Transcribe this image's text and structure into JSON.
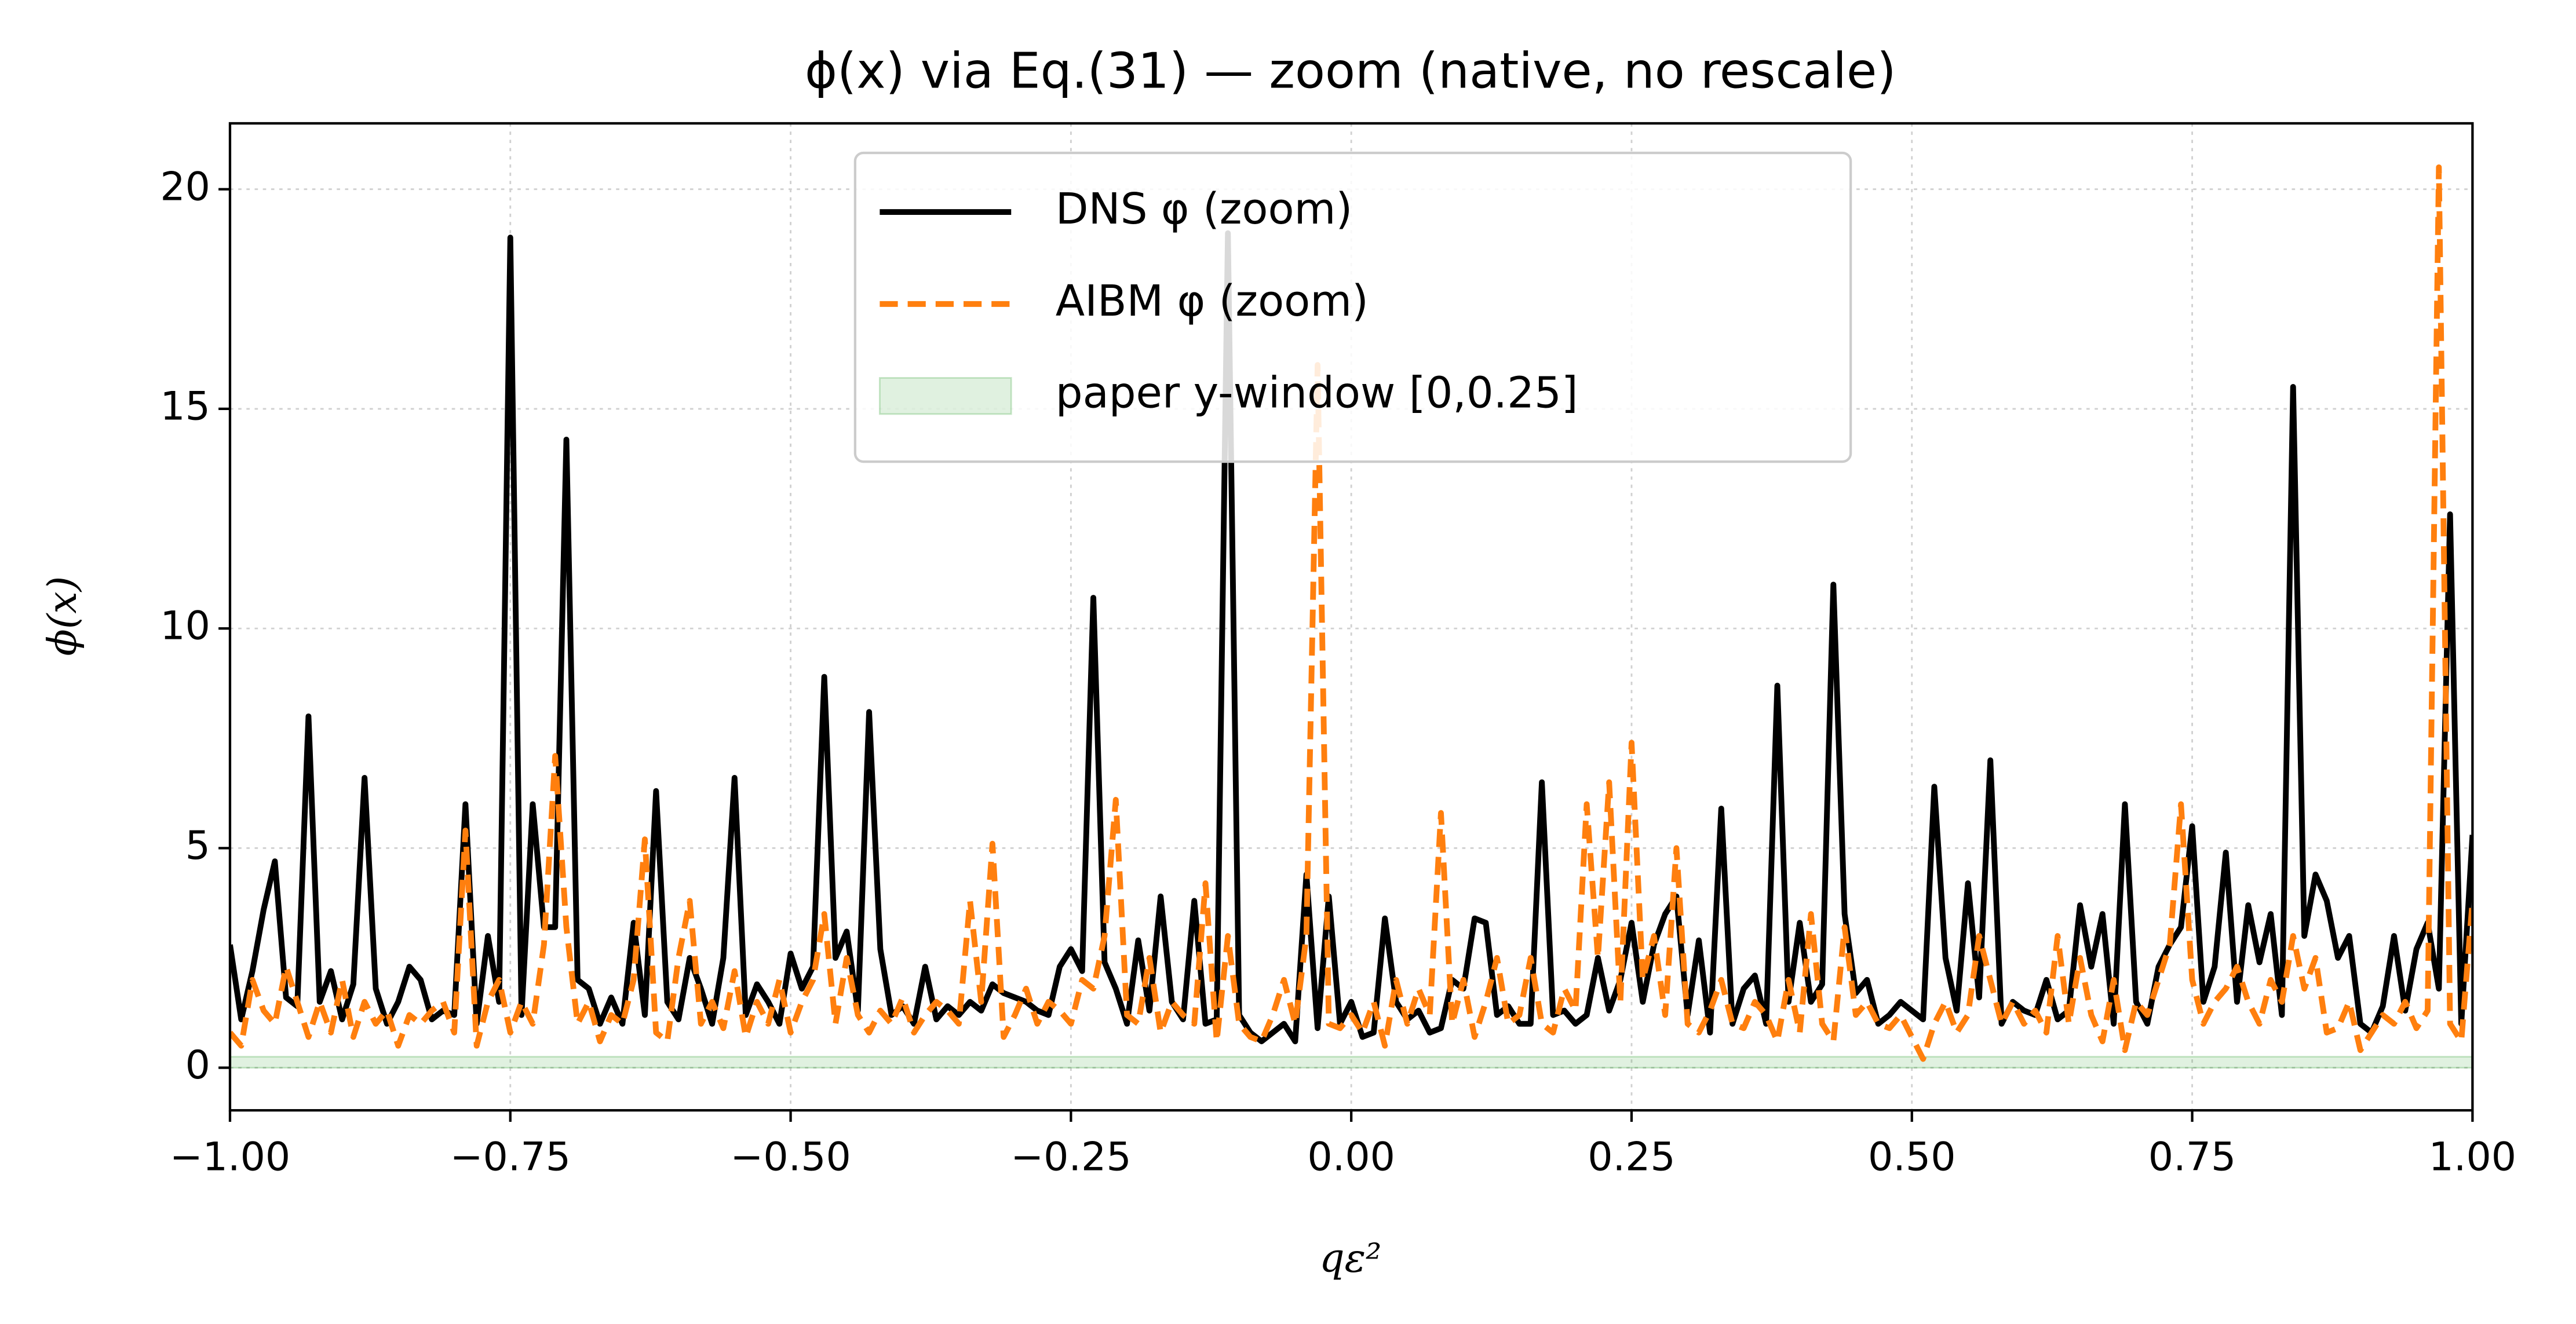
{
  "chart_data": {
    "type": "line",
    "title": "ϕ(x) via Eq.(31) — zoom (native, no rescale)",
    "x_label": "qε²",
    "y_label": "ϕ(x)",
    "xlim": [
      -1,
      1
    ],
    "ylim": [
      -0.97,
      21.5
    ],
    "xticks": [
      {
        "value": -1,
        "label": "−1.00"
      },
      {
        "value": -0.75,
        "label": "−0.75"
      },
      {
        "value": -0.5,
        "label": "−0.50"
      },
      {
        "value": -0.25,
        "label": "−0.25"
      },
      {
        "value": 0,
        "label": "0.00"
      },
      {
        "value": 0.25,
        "label": "0.25"
      },
      {
        "value": 0.5,
        "label": "0.50"
      },
      {
        "value": 0.75,
        "label": "0.75"
      },
      {
        "value": 1,
        "label": "1.00"
      }
    ],
    "yticks": [
      0,
      5,
      10,
      15,
      20
    ],
    "grid": true,
    "legend": "upper center",
    "x": [
      -1,
      -0.99,
      -0.98,
      -0.97,
      -0.96,
      -0.95,
      -0.94,
      -0.93,
      -0.92,
      -0.91,
      -0.9,
      -0.89,
      -0.88,
      -0.87,
      -0.86,
      -0.85,
      -0.84,
      -0.83,
      -0.82,
      -0.81,
      -0.8,
      -0.79,
      -0.78,
      -0.77,
      -0.76,
      -0.75,
      -0.74,
      -0.73,
      -0.72,
      -0.71,
      -0.7,
      -0.69,
      -0.68,
      -0.67,
      -0.66,
      -0.65,
      -0.64,
      -0.63,
      -0.62,
      -0.61,
      -0.6,
      -0.59,
      -0.58,
      -0.57,
      -0.56,
      -0.55,
      -0.54,
      -0.53,
      -0.52,
      -0.51,
      -0.5,
      -0.49,
      -0.48,
      -0.47,
      -0.46,
      -0.45,
      -0.44,
      -0.43,
      -0.42,
      -0.41,
      -0.4,
      -0.39,
      -0.38,
      -0.37,
      -0.36,
      -0.35,
      -0.34,
      -0.33,
      -0.32,
      -0.31,
      -0.3,
      -0.29,
      -0.28,
      -0.27,
      -0.26,
      -0.25,
      -0.24,
      -0.23,
      -0.22,
      -0.21,
      -0.2,
      -0.19,
      -0.18,
      -0.17,
      -0.16,
      -0.15,
      -0.14,
      -0.13,
      -0.12,
      -0.11,
      -0.1,
      -0.09,
      -0.08,
      -0.07,
      -0.06,
      -0.05,
      -0.04,
      -0.03,
      -0.02,
      -0.01,
      0,
      0.01,
      0.02,
      0.03,
      0.04,
      0.05,
      0.06,
      0.07,
      0.08,
      0.09,
      0.1,
      0.11,
      0.12,
      0.13,
      0.14,
      0.15,
      0.16,
      0.17,
      0.18,
      0.19,
      0.2,
      0.21,
      0.22,
      0.23,
      0.24,
      0.25,
      0.26,
      0.27,
      0.28,
      0.29,
      0.3,
      0.31,
      0.32,
      0.33,
      0.34,
      0.35,
      0.36,
      0.37,
      0.38,
      0.39,
      0.4,
      0.41,
      0.42,
      0.43,
      0.44,
      0.45,
      0.46,
      0.47,
      0.48,
      0.49,
      0.5,
      0.51,
      0.52,
      0.53,
      0.54,
      0.55,
      0.56,
      0.57,
      0.58,
      0.59,
      0.6,
      0.61,
      0.62,
      0.63,
      0.64,
      0.65,
      0.66,
      0.67,
      0.68,
      0.69,
      0.7,
      0.71,
      0.72,
      0.73,
      0.74,
      0.75,
      0.76,
      0.77,
      0.78,
      0.79,
      0.8,
      0.81,
      0.82,
      0.83,
      0.84,
      0.85,
      0.86,
      0.87,
      0.88,
      0.89,
      0.9,
      0.91,
      0.92,
      0.93,
      0.94,
      0.95,
      0.96,
      0.97,
      0.98,
      0.99,
      1
    ],
    "series": [
      {
        "name": "DNS φ (zoom)",
        "color": "#000000",
        "dash": "solid",
        "values": [
          2.8,
          1.1,
          2.2,
          3.6,
          4.7,
          1.6,
          1.4,
          8.0,
          1.5,
          2.2,
          1.1,
          1.9,
          6.6,
          1.8,
          1.0,
          1.5,
          2.3,
          2.0,
          1.1,
          1.3,
          1.2,
          6.0,
          1.0,
          3.0,
          1.5,
          18.9,
          1.2,
          6.0,
          3.2,
          3.2,
          14.3,
          2.0,
          1.8,
          1.0,
          1.6,
          1.0,
          3.3,
          1.2,
          6.3,
          1.5,
          1.1,
          2.5,
          1.8,
          1.0,
          2.5,
          6.6,
          1.2,
          1.9,
          1.5,
          1.0,
          2.6,
          1.8,
          2.3,
          8.9,
          2.5,
          3.1,
          1.3,
          8.1,
          2.7,
          1.2,
          1.4,
          1.0,
          2.3,
          1.1,
          1.4,
          1.2,
          1.5,
          1.3,
          1.9,
          1.7,
          1.6,
          1.5,
          1.3,
          1.2,
          2.3,
          2.7,
          2.2,
          10.7,
          2.4,
          1.8,
          1.0,
          2.9,
          1.3,
          3.9,
          1.5,
          1.1,
          3.8,
          1.0,
          1.1,
          19.0,
          1.2,
          0.8,
          0.6,
          0.8,
          1.0,
          0.6,
          4.4,
          0.9,
          3.9,
          1.0,
          1.5,
          0.7,
          0.8,
          3.4,
          1.5,
          1.1,
          1.3,
          0.8,
          0.9,
          2.0,
          1.8,
          3.4,
          3.3,
          1.2,
          1.4,
          1.0,
          1.0,
          6.5,
          1.2,
          1.3,
          1.0,
          1.2,
          2.5,
          1.3,
          2.0,
          3.3,
          1.5,
          2.8,
          3.5,
          3.9,
          1.2,
          2.9,
          0.8,
          5.9,
          1.0,
          1.8,
          2.1,
          1.0,
          8.7,
          1.5,
          3.3,
          1.5,
          1.9,
          11.0,
          3.5,
          1.7,
          2.0,
          1.0,
          1.2,
          1.5,
          1.3,
          1.1,
          6.4,
          2.5,
          1.3,
          4.2,
          1.6,
          7.0,
          1.0,
          1.5,
          1.3,
          1.2,
          2.0,
          1.1,
          1.3,
          3.7,
          2.3,
          3.5,
          1.0,
          6.0,
          1.5,
          1.0,
          2.3,
          2.8,
          3.2,
          5.5,
          1.5,
          2.3,
          4.9,
          1.5,
          3.7,
          2.4,
          3.5,
          1.2,
          15.5,
          3.0,
          4.4,
          3.8,
          2.5,
          3.0,
          1.0,
          0.8,
          1.4,
          3.0,
          1.3,
          2.7,
          3.3,
          1.8,
          12.6,
          1.0,
          5.3
        ]
      },
      {
        "name": "AIBM φ (zoom)",
        "color": "#ff7f0e",
        "dash": "dashed",
        "values": [
          0.8,
          0.5,
          2.0,
          1.3,
          1.0,
          2.3,
          1.5,
          0.7,
          1.5,
          0.8,
          2.0,
          0.7,
          1.5,
          1.0,
          1.3,
          0.5,
          1.2,
          1.0,
          1.3,
          1.5,
          0.8,
          5.4,
          0.5,
          1.5,
          2.0,
          0.8,
          1.5,
          1.0,
          2.8,
          7.1,
          3.2,
          1.0,
          1.5,
          0.6,
          1.2,
          1.0,
          2.0,
          5.2,
          0.8,
          0.6,
          2.5,
          3.8,
          1.0,
          1.5,
          0.9,
          2.2,
          0.7,
          1.5,
          1.0,
          2.0,
          0.8,
          1.5,
          2.0,
          3.5,
          1.0,
          2.5,
          1.2,
          0.8,
          1.3,
          1.0,
          1.6,
          0.8,
          1.2,
          1.5,
          1.3,
          1.0,
          3.8,
          1.5,
          5.1,
          0.7,
          1.2,
          1.8,
          1.0,
          1.5,
          1.3,
          1.0,
          2.0,
          1.8,
          3.0,
          6.1,
          1.2,
          1.0,
          2.5,
          0.8,
          1.5,
          1.2,
          1.0,
          4.2,
          0.6,
          3.0,
          1.0,
          0.7,
          0.6,
          1.2,
          2.0,
          1.0,
          3.0,
          16.0,
          1.0,
          0.9,
          1.2,
          0.8,
          1.5,
          0.5,
          2.0,
          1.0,
          1.8,
          1.2,
          5.8,
          1.0,
          2.0,
          0.7,
          1.5,
          2.5,
          1.0,
          1.2,
          2.5,
          1.0,
          0.8,
          1.8,
          1.3,
          6.0,
          2.5,
          6.5,
          1.5,
          7.4,
          2.0,
          3.0,
          1.2,
          5.0,
          1.0,
          0.8,
          1.3,
          2.0,
          1.0,
          0.9,
          1.5,
          1.2,
          0.6,
          2.0,
          0.8,
          3.5,
          1.0,
          0.6,
          3.2,
          1.2,
          1.5,
          1.0,
          0.9,
          1.2,
          0.7,
          0.2,
          1.0,
          1.5,
          0.8,
          1.2,
          3.0,
          2.0,
          1.0,
          1.5,
          1.0,
          1.3,
          0.8,
          3.0,
          1.0,
          2.5,
          1.2,
          0.6,
          2.0,
          0.4,
          1.5,
          1.2,
          2.0,
          2.8,
          6.0,
          2.0,
          1.0,
          1.5,
          1.8,
          2.3,
          1.5,
          1.0,
          2.0,
          1.5,
          3.0,
          1.8,
          2.5,
          0.8,
          0.9,
          1.5,
          0.4,
          0.8,
          1.2,
          1.0,
          1.5,
          0.9,
          1.3,
          20.5,
          1.0,
          0.6,
          3.8
        ]
      }
    ],
    "bands": [
      {
        "name": "paper y-window [0,0.25]",
        "color": "#2ca02c",
        "ylim": [
          0,
          0.25
        ]
      }
    ]
  }
}
